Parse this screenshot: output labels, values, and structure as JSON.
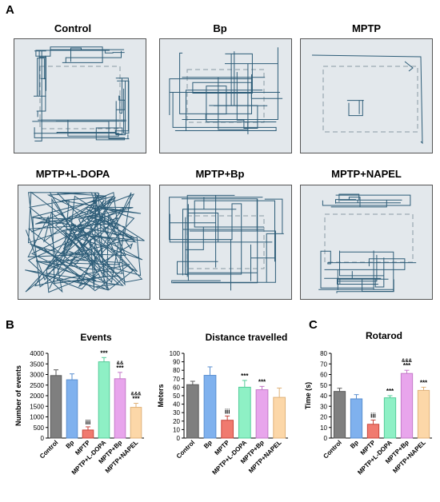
{
  "panels": {
    "A": "A",
    "B": "B",
    "C": "C"
  },
  "tracks": [
    {
      "label": "Control",
      "pattern": "dense-perimeter"
    },
    {
      "label": "Bp",
      "pattern": "grid-exploration"
    },
    {
      "label": "MPTP",
      "pattern": "sparse"
    },
    {
      "label": "MPTP+L-DOPA",
      "pattern": "dense-full"
    },
    {
      "label": "MPTP+Bp",
      "pattern": "grid-exploration"
    },
    {
      "label": "MPTP+NAPEL",
      "pattern": "dense-bottom"
    }
  ],
  "colors": {
    "track_line": "#2e5d78",
    "track_bg": "#e3e8ec",
    "track_dash": "#8a9aa5",
    "bars": [
      "#7f7f7f",
      "#7fb1ee",
      "#f07a6f",
      "#8ef0c5",
      "#e8a5ec",
      "#fcd7a8"
    ],
    "bar_edges": [
      "#5a5a5a",
      "#5a8fd0",
      "#c9463c",
      "#55cc99",
      "#c47ac8",
      "#e0b27a"
    ]
  },
  "chart_data": [
    {
      "type": "bar",
      "title": "Events",
      "ylabel": "Number of events",
      "ylim": [
        0,
        4000
      ],
      "yticks": [
        "0",
        "500",
        "1000",
        "1500",
        "2000",
        "2500",
        "3000",
        "3500",
        "4000"
      ],
      "categories": [
        "Control",
        "Bp",
        "MPTP",
        "MPTP+L-DOPA",
        "MPTP+Bp",
        "MPTP+NAPEL"
      ],
      "values": [
        2950,
        2750,
        380,
        3600,
        2800,
        1450
      ],
      "errors": [
        270,
        280,
        150,
        200,
        300,
        190
      ],
      "annotations": [
        "",
        "",
        "iii",
        "***",
        "&&\n***",
        "&&&\n***"
      ]
    },
    {
      "type": "bar",
      "title": "Distance travelled",
      "ylabel": "Meters",
      "ylim": [
        0,
        100
      ],
      "yticks": [
        "0",
        "10",
        "20",
        "30",
        "40",
        "50",
        "60",
        "70",
        "80",
        "90",
        "100"
      ],
      "categories": [
        "Control",
        "Bp",
        "MPTP",
        "MPTP+L-DOPA",
        "MPTP+Bp",
        "MPTP+NAPEL"
      ],
      "values": [
        63,
        74,
        21,
        60,
        57,
        48
      ],
      "errors": [
        4,
        10,
        5,
        8,
        4,
        11
      ],
      "annotations": [
        "",
        "",
        "iii",
        "***",
        "***",
        ""
      ]
    },
    {
      "type": "bar",
      "title": "Rotarod",
      "ylabel": "Time (s)",
      "ylim": [
        0,
        80
      ],
      "yticks": [
        "0",
        "10",
        "20",
        "30",
        "40",
        "50",
        "60",
        "70",
        "80"
      ],
      "categories": [
        "Control",
        "Bp",
        "MPTP",
        "MPTP+L-DOPA",
        "MPTP+Bp",
        "MPTP+NAPEL"
      ],
      "values": [
        44,
        37,
        13,
        38,
        61,
        45
      ],
      "errors": [
        3,
        4,
        4,
        2,
        3,
        3
      ],
      "annotations": [
        "",
        "",
        "iii",
        "***",
        "&&&\n***",
        "***"
      ]
    }
  ]
}
